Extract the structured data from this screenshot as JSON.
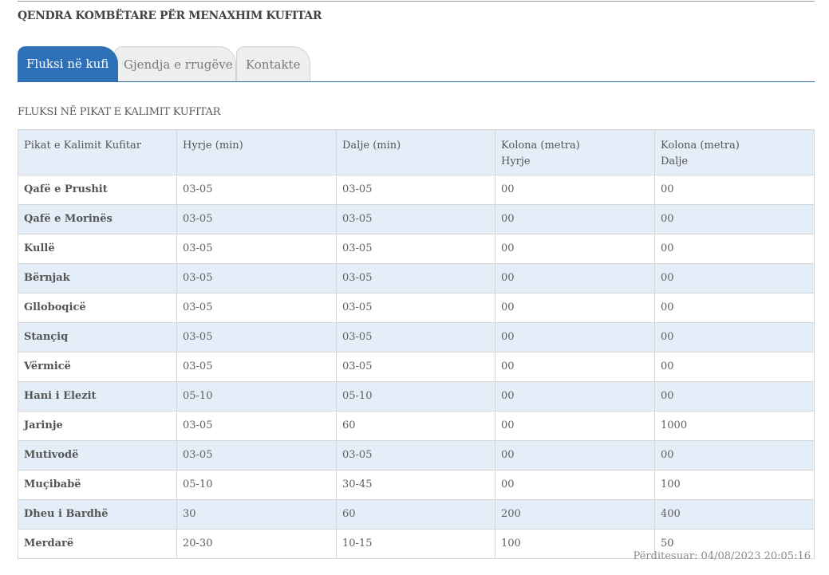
{
  "header": {
    "title": "QENDRA KOMBËTARE PËR MENAXHIM KUFITAR"
  },
  "tabs": [
    {
      "label": "Fluksi në kufi",
      "active": true
    },
    {
      "label": "Gjendja e rrugëve",
      "active": false
    },
    {
      "label": "Kontakte",
      "active": false
    }
  ],
  "section": {
    "title": "FLUKSI NË PIKAT E KALIMIT KUFITAR"
  },
  "table": {
    "headers": [
      {
        "line1": "Pikat e Kalimit Kufitar",
        "line2": ""
      },
      {
        "line1": "Hyrje (min)",
        "line2": ""
      },
      {
        "line1": "Dalje (min)",
        "line2": ""
      },
      {
        "line1": "Kolona (metra)",
        "line2": "Hyrje"
      },
      {
        "line1": "Kolona (metra)",
        "line2": "Dalje"
      }
    ],
    "rows": [
      [
        "Qafë e Prushit",
        "03-05",
        "03-05",
        "00",
        "00"
      ],
      [
        "Qafë e Morinës",
        "03-05",
        "03-05",
        "00",
        "00"
      ],
      [
        "Kullë",
        "03-05",
        "03-05",
        "00",
        "00"
      ],
      [
        "Bërnjak",
        "03-05",
        "03-05",
        "00",
        "00"
      ],
      [
        "Glloboqicë",
        "03-05",
        "03-05",
        "00",
        "00"
      ],
      [
        "Stançiq",
        "03-05",
        "03-05",
        "00",
        "00"
      ],
      [
        "Vërmicë",
        "03-05",
        "03-05",
        "00",
        "00"
      ],
      [
        "Hani i Elezit",
        "05-10",
        "05-10",
        "00",
        "00"
      ],
      [
        "Jarinje",
        "03-05",
        "60",
        "00",
        "1000"
      ],
      [
        "Mutivodë",
        "03-05",
        "03-05",
        "00",
        "00"
      ],
      [
        "Muçibabë",
        "05-10",
        "30-45",
        "00",
        "100"
      ],
      [
        "Dheu i Bardhë",
        "30",
        "60",
        "200",
        "400"
      ],
      [
        "Merdarë",
        "20-30",
        "10-15",
        "100",
        "50"
      ]
    ]
  },
  "footer": {
    "updated": "Përditesuar: 04/08/2023 20:05:16"
  },
  "colors": {
    "accent": "#2f71b8",
    "row_alt": "#e3eef8",
    "tab_inactive": "#eeeeee"
  }
}
